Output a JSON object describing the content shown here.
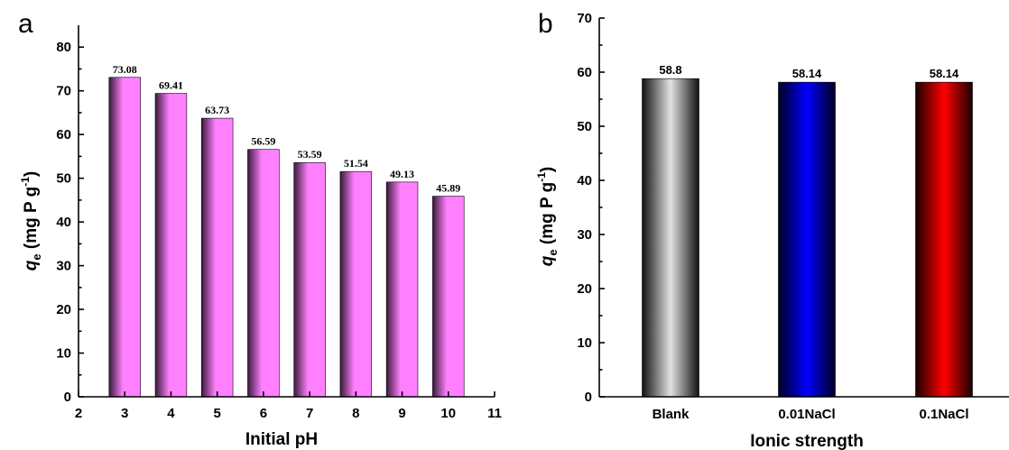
{
  "chart_data": [
    {
      "panel_label": "a",
      "type": "bar",
      "xlabel": "Initial pH",
      "ylabel_main": "q",
      "ylabel_sub": "e",
      "ylabel_unit": " (mg P g",
      "ylabel_sup": "-1",
      "ylabel_close": ")",
      "xlim": [
        2,
        11
      ],
      "x_ticks": [
        2,
        3,
        4,
        5,
        6,
        7,
        8,
        9,
        10,
        11
      ],
      "ylim": [
        0,
        85
      ],
      "y_ticks": [
        0,
        10,
        20,
        30,
        40,
        50,
        60,
        70,
        80
      ],
      "x": [
        3,
        4,
        5,
        6,
        7,
        8,
        9,
        10
      ],
      "values": [
        73.08,
        69.41,
        63.73,
        56.59,
        53.59,
        51.54,
        49.13,
        45.89
      ],
      "data_labels": [
        "73.08",
        "69.41",
        "63.73",
        "56.59",
        "53.59",
        "51.54",
        "49.13",
        "45.89"
      ],
      "bar_colors": [
        "#ff80ff"
      ],
      "grid": false
    },
    {
      "panel_label": "b",
      "type": "bar",
      "xlabel": "Ionic strength",
      "ylabel_main": "q",
      "ylabel_sub": "e",
      "ylabel_unit": " (mg P g",
      "ylabel_sup": "-1",
      "ylabel_close": ")",
      "ylim": [
        0,
        70
      ],
      "y_ticks": [
        0,
        10,
        20,
        30,
        40,
        50,
        60,
        70
      ],
      "categories": [
        "Blank",
        "0.01NaCl",
        "0.1NaCl"
      ],
      "values": [
        58.8,
        58.14,
        58.14
      ],
      "data_labels": [
        "58.8",
        "58.14",
        "58.14"
      ],
      "bar_colors": [
        "#c8c8c8",
        "#0000ff",
        "#ff0000"
      ],
      "grid": false
    }
  ]
}
